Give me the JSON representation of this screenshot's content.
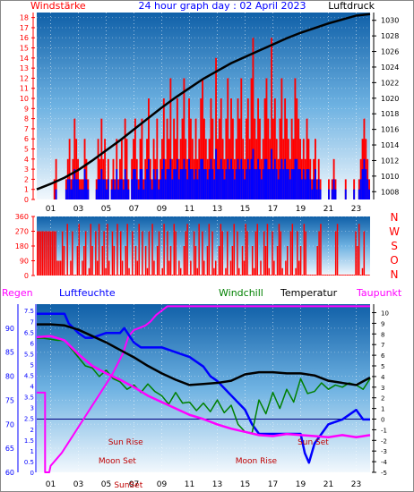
{
  "header": {
    "left": "Windstärke",
    "title": "24 hour graph day : 02 April 2023",
    "right": "Luftdruck"
  },
  "hours": [
    "01",
    "03",
    "05",
    "07",
    "09",
    "11",
    "13",
    "15",
    "17",
    "19",
    "21",
    "23"
  ],
  "colors": {
    "wind_speed": "#ff0000",
    "wind_avg": "#0000ff",
    "pressure": "#000000",
    "wind_dir": "#ff0000",
    "humidity": "#0000ff",
    "windchill": "#008000",
    "temperature": "#000000",
    "dewpoint": "#ff00ff",
    "rain": "#ff00ff",
    "label_red": "#ff0000",
    "label_blue": "#0000ff",
    "label_magenta": "#ff00ff"
  },
  "chart_data": [
    {
      "type": "bar",
      "panel": "wind",
      "ylabel_left": "Windstärke",
      "ylabel_right": "Luftdruck",
      "y_ticks_left": [
        "0",
        "1",
        "2",
        "3",
        "4",
        "5",
        "6",
        "7",
        "8",
        "9",
        "10",
        "11",
        "12",
        "13",
        "14",
        "15",
        "16",
        "17",
        "18"
      ],
      "ylim_left": [
        0,
        18.5
      ],
      "y_ticks_right": [
        "1008",
        "1010",
        "1012",
        "1014",
        "1016",
        "1018",
        "1020",
        "1022",
        "1024",
        "1026",
        "1028",
        "1030"
      ],
      "ylim_right": [
        1007,
        1031
      ],
      "x_range": [
        0,
        24
      ],
      "series": [
        {
          "name": "Windstärke",
          "kind": "wind_gust",
          "values": [
            0,
            0,
            0,
            0,
            0,
            0,
            0,
            0,
            0,
            0,
            2,
            4,
            0,
            0,
            0,
            0,
            0,
            2,
            4,
            6,
            2,
            4,
            8,
            6,
            4,
            2,
            2,
            2,
            6,
            4,
            2,
            0,
            0,
            0,
            0,
            2,
            6,
            4,
            8,
            4,
            6,
            2,
            4,
            0,
            2,
            4,
            2,
            6,
            2,
            4,
            6,
            2,
            8,
            6,
            2,
            0,
            4,
            6,
            8,
            4,
            2,
            6,
            8,
            2,
            4,
            6,
            10,
            4,
            2,
            6,
            4,
            8,
            2,
            4,
            6,
            10,
            4,
            8,
            6,
            12,
            4,
            8,
            6,
            10,
            4,
            6,
            8,
            12,
            6,
            4,
            10,
            8,
            6,
            4,
            8,
            4,
            6,
            10,
            12,
            8,
            6,
            4,
            6,
            10,
            8,
            4,
            14,
            6,
            8,
            10,
            6,
            4,
            8,
            12,
            6,
            10,
            8,
            4,
            6,
            10,
            8,
            12,
            6,
            4,
            8,
            10,
            6,
            12,
            16,
            8,
            6,
            10,
            8,
            4,
            6,
            10,
            12,
            8,
            6,
            16,
            8,
            10,
            6,
            4,
            8,
            12,
            6,
            10,
            8,
            6,
            4,
            8,
            6,
            12,
            10,
            8,
            6,
            4,
            6,
            4,
            8,
            6,
            4,
            2,
            4,
            6,
            2,
            4,
            2,
            0,
            0,
            0,
            0,
            2,
            0,
            2,
            4,
            2,
            0,
            0,
            0,
            0,
            0,
            2,
            0,
            0,
            0,
            0,
            2,
            0,
            0,
            2,
            4,
            6,
            8,
            6,
            4,
            2
          ]
        },
        {
          "name": "Windmittel",
          "kind": "wind_avg",
          "values": [
            0,
            0,
            0,
            0,
            0,
            0,
            0,
            0,
            0,
            0,
            0,
            1,
            0,
            0,
            0,
            0,
            0,
            1,
            2,
            2,
            1,
            2,
            3,
            2,
            2,
            1,
            1,
            1,
            3,
            2,
            1,
            0,
            0,
            0,
            0,
            1,
            2,
            2,
            3,
            2,
            2,
            1,
            2,
            0,
            1,
            2,
            1,
            3,
            1,
            2,
            2,
            1,
            3,
            2,
            1,
            0,
            2,
            3,
            3,
            2,
            1,
            3,
            3,
            1,
            2,
            3,
            4,
            2,
            1,
            3,
            2,
            3,
            1,
            2,
            3,
            4,
            2,
            3,
            3,
            4,
            2,
            3,
            3,
            4,
            2,
            3,
            3,
            4,
            3,
            2,
            4,
            3,
            3,
            2,
            3,
            2,
            3,
            4,
            4,
            3,
            3,
            2,
            3,
            4,
            3,
            2,
            5,
            3,
            3,
            4,
            3,
            2,
            3,
            4,
            3,
            4,
            3,
            2,
            3,
            4,
            3,
            4,
            3,
            2,
            3,
            4,
            3,
            4,
            5,
            3,
            3,
            4,
            3,
            2,
            3,
            4,
            4,
            3,
            3,
            5,
            3,
            4,
            3,
            2,
            3,
            4,
            3,
            4,
            3,
            3,
            2,
            3,
            3,
            4,
            4,
            3,
            3,
            2,
            3,
            2,
            3,
            3,
            2,
            1,
            2,
            3,
            1,
            2,
            1,
            0,
            0,
            0,
            0,
            1,
            0,
            1,
            2,
            1,
            0,
            0,
            0,
            0,
            0,
            1,
            0,
            0,
            0,
            0,
            1,
            0,
            0,
            1,
            2,
            3,
            4,
            3,
            2,
            1
          ]
        },
        {
          "name": "Luftdruck",
          "kind": "pressure",
          "x": [
            0,
            1,
            2,
            3,
            4,
            5,
            6,
            7,
            8,
            9,
            10,
            11,
            12,
            13,
            14,
            15,
            16,
            17,
            18,
            19,
            20,
            21,
            22,
            23,
            24
          ],
          "values": [
            1008.3,
            1009.0,
            1009.8,
            1010.8,
            1012.0,
            1013.3,
            1014.6,
            1016.0,
            1017.4,
            1018.8,
            1020.1,
            1021.3,
            1022.5,
            1023.5,
            1024.5,
            1025.3,
            1026.1,
            1026.9,
            1027.7,
            1028.4,
            1029.0,
            1029.6,
            1030.1,
            1030.6,
            1030.8
          ]
        }
      ]
    },
    {
      "type": "bar",
      "panel": "wind_direction",
      "y_ticks": [
        "0",
        "90",
        "180",
        "270",
        "360"
      ],
      "ylim": [
        0,
        360
      ],
      "right_labels": [
        "N",
        "W",
        "S",
        "O",
        "N"
      ],
      "x_range": [
        0,
        24
      ],
      "series": [
        {
          "name": "Windrichtung",
          "values": [
            270,
            270,
            270,
            270,
            270,
            270,
            270,
            270,
            270,
            270,
            270,
            270,
            90,
            90,
            90,
            270,
            180,
            0,
            315,
            0,
            90,
            270,
            0,
            0,
            180,
            315,
            0,
            90,
            180,
            270,
            0,
            45,
            315,
            180,
            0,
            270,
            90,
            315,
            0,
            180,
            270,
            45,
            315,
            90,
            0,
            270,
            180,
            0,
            315,
            0,
            270,
            90,
            0,
            180,
            315,
            45,
            0,
            270,
            0,
            180,
            90,
            315,
            0,
            270,
            0,
            180,
            45,
            270,
            0,
            315,
            90,
            0,
            180,
            270,
            0,
            45,
            315,
            0,
            270,
            90,
            180,
            0,
            315,
            270,
            0,
            90,
            45,
            0,
            180,
            270,
            315,
            0,
            90,
            0,
            270,
            180,
            45,
            315,
            0,
            270,
            90,
            0,
            180,
            315,
            0,
            270,
            45,
            90,
            0,
            180,
            315,
            270,
            0,
            45,
            270,
            0,
            90,
            180,
            315,
            0,
            270,
            45,
            0,
            180,
            90,
            315,
            270,
            0,
            0,
            180,
            45,
            270,
            315,
            0,
            90,
            0,
            270,
            180,
            315,
            45,
            0,
            270,
            90,
            0,
            180,
            315,
            270,
            45,
            0,
            90,
            180,
            0,
            270,
            315,
            0,
            45,
            270,
            90,
            180,
            0,
            315,
            270,
            0,
            0,
            0,
            0,
            0,
            0,
            180,
            270,
            315,
            0,
            0,
            0,
            0,
            0,
            0,
            0,
            0,
            270,
            315,
            0,
            0,
            0,
            0,
            0,
            0,
            0,
            0,
            0,
            0,
            270,
            180,
            315,
            0,
            45,
            270,
            0,
            0,
            0
          ]
        }
      ]
    },
    {
      "type": "line",
      "panel": "climate",
      "labels": {
        "rain": "Regen",
        "humidity": "Luftfeuchte",
        "windchill": "Windchill",
        "temperature": "Temperatur",
        "dewpoint": "Taupunkt"
      },
      "y_ticks_rain": [
        "0",
        "0.5",
        "1",
        "1.5",
        "2",
        "2.5",
        "3",
        "3.5",
        "4",
        "4.5",
        "5",
        "5.5",
        "6",
        "6.5",
        "7",
        "7.5"
      ],
      "ylim_rain": [
        0,
        7.8
      ],
      "y_ticks_humidity": [
        "60",
        "65",
        "70",
        "75",
        "80",
        "85",
        "90"
      ],
      "ylim_humidity": [
        60,
        95
      ],
      "y_ticks_temperature": [
        "-5",
        "-4",
        "-3",
        "-2",
        "-1",
        "0",
        "1",
        "2",
        "3",
        "4",
        "5",
        "6",
        "7",
        "8",
        "9",
        "10"
      ],
      "ylim_temperature": [
        -5,
        10.8
      ],
      "annotations": [
        {
          "text": "Sun Rise",
          "x": 6.4
        },
        {
          "text": "Moon Set",
          "x": 5.8
        },
        {
          "text": "Sun Set",
          "x": 19.9
        },
        {
          "text": "Moon Rise",
          "x": 15.8
        },
        {
          "text": "SunSet",
          "x": 6.6
        }
      ],
      "x_range": [
        0,
        24
      ],
      "series": [
        {
          "name": "Regen",
          "axis": "rain",
          "x": [
            0,
            0.6,
            0.6,
            0.9,
            1.0,
            1.4,
            1.8,
            2.2,
            2.6,
            3.0,
            3.4,
            3.8,
            4.2,
            4.6,
            5.0,
            5.4,
            5.8,
            6.2,
            6.6,
            7.0,
            7.4,
            7.8,
            8.2,
            8.6,
            9.0,
            9.4,
            24
          ],
          "values": [
            3.7,
            3.7,
            0,
            0,
            0.3,
            0.6,
            0.9,
            1.3,
            1.7,
            2.1,
            2.5,
            2.9,
            3.3,
            3.7,
            4.1,
            4.5,
            5.0,
            5.5,
            6.3,
            6.6,
            6.7,
            6.8,
            7.0,
            7.3,
            7.5,
            7.7,
            7.7
          ]
        },
        {
          "name": "Luftfeuchte",
          "axis": "humidity",
          "x": [
            0,
            1,
            2,
            2.3,
            3,
            3.5,
            4,
            5,
            6,
            6.3,
            7,
            7.5,
            8,
            9,
            10,
            11,
            12,
            12.5,
            13,
            14,
            15,
            15.5,
            16,
            17,
            18,
            19,
            19.3,
            19.6,
            20,
            21,
            22,
            23,
            23.5,
            24
          ],
          "values": [
            93,
            93,
            93,
            91,
            89,
            88,
            88,
            89,
            89,
            90,
            87,
            86,
            86,
            86,
            85,
            84,
            82,
            80,
            79,
            76,
            73,
            70,
            68,
            68,
            68,
            68,
            64,
            62,
            66,
            70,
            71,
            73,
            71,
            71
          ]
        },
        {
          "name": "Windchill",
          "axis": "temperature",
          "x": [
            0,
            0.5,
            1,
            1.5,
            2,
            2.5,
            3,
            3.5,
            4,
            4.5,
            5,
            5.5,
            6,
            6.5,
            7,
            7.5,
            8,
            8.5,
            9,
            9.5,
            10,
            10.5,
            11,
            11.5,
            12,
            12.5,
            13,
            13.5,
            14,
            14.5,
            15,
            15.5,
            16,
            16.5,
            17,
            17.5,
            18,
            18.5,
            19,
            19.5,
            20,
            20.5,
            21,
            21.5,
            22,
            22.5,
            23,
            23.5,
            24
          ],
          "values": [
            7.6,
            7.6,
            7.5,
            7.4,
            7.4,
            6.6,
            5.8,
            5.0,
            4.8,
            4.0,
            4.6,
            3.8,
            3.5,
            2.8,
            3.2,
            2.5,
            3.3,
            2.6,
            2.2,
            1.4,
            2.5,
            1.5,
            1.6,
            0.8,
            1.5,
            0.7,
            1.8,
            0.6,
            1.3,
            -0.5,
            -1.2,
            -1.3,
            1.8,
            0.5,
            2.5,
            1.0,
            2.8,
            1.6,
            3.8,
            2.4,
            2.6,
            3.4,
            2.8,
            3.2,
            3.0,
            3.4,
            3.2,
            2.8,
            3.8
          ]
        },
        {
          "name": "Temperatur",
          "axis": "temperature",
          "x": [
            0,
            1,
            2,
            3,
            4,
            5,
            6,
            7,
            8,
            9,
            10,
            11,
            12,
            13,
            14,
            15,
            16,
            17,
            18,
            19,
            20,
            21,
            22,
            23,
            24
          ],
          "values": [
            8.9,
            8.9,
            8.8,
            8.4,
            7.8,
            7.2,
            6.5,
            5.8,
            5.0,
            4.3,
            3.7,
            3.2,
            3.3,
            3.4,
            3.6,
            4.2,
            4.4,
            4.4,
            4.3,
            4.3,
            4.1,
            3.6,
            3.4,
            3.2,
            3.9
          ]
        },
        {
          "name": "Taupunkt",
          "axis": "temperature",
          "x": [
            0,
            1,
            2,
            3,
            4,
            5,
            6,
            7,
            8,
            9,
            10,
            11,
            12,
            13,
            14,
            15,
            16,
            17,
            18,
            19,
            20,
            21,
            22,
            23,
            24
          ],
          "values": [
            7.7,
            7.8,
            7.4,
            6.1,
            5.0,
            4.3,
            3.7,
            3.0,
            2.2,
            1.6,
            1.0,
            0.4,
            0.0,
            -0.5,
            -0.9,
            -1.2,
            -1.5,
            -1.6,
            -1.4,
            -1.5,
            -1.6,
            -1.7,
            -1.5,
            -1.7,
            -1.5
          ]
        }
      ]
    }
  ]
}
